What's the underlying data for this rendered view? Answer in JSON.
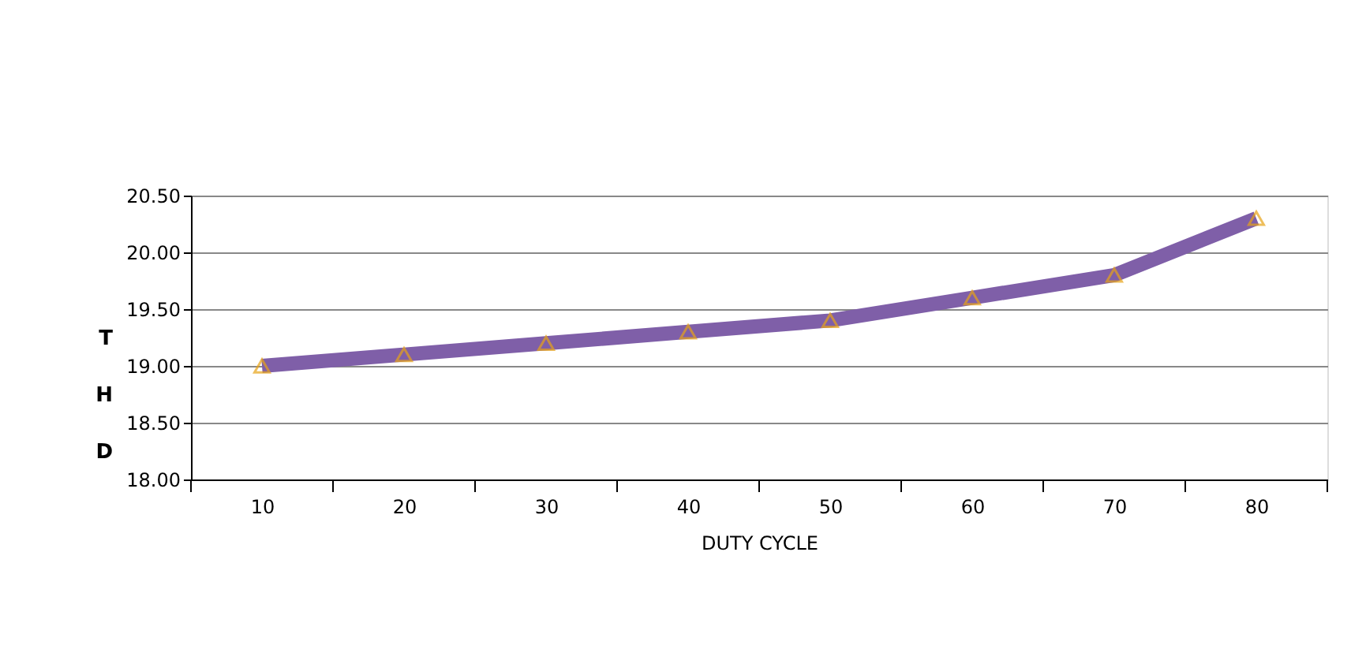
{
  "chart_data": {
    "type": "line",
    "xlabel": "DUTY CYCLE",
    "ylabel": "THD",
    "categories": [
      "10",
      "20",
      "30",
      "40",
      "50",
      "60",
      "70",
      "80"
    ],
    "series": [
      {
        "color": "#7f5fa8",
        "values": [
          19.0,
          19.1,
          19.2,
          19.3,
          19.4,
          19.6,
          19.8,
          20.3
        ]
      }
    ],
    "ylim": [
      18.0,
      20.5
    ],
    "yticks": [
      {
        "value": 18.0,
        "label": "18.00"
      },
      {
        "value": 18.5,
        "label": "18.50"
      },
      {
        "value": 19.0,
        "label": "19.00"
      },
      {
        "value": 19.5,
        "label": "19.50"
      },
      {
        "value": 20.0,
        "label": "20.00"
      },
      {
        "value": 20.5,
        "label": "20.50"
      }
    ],
    "grid": "y",
    "marker": "triangle",
    "line_style": "solid",
    "legend": false
  }
}
